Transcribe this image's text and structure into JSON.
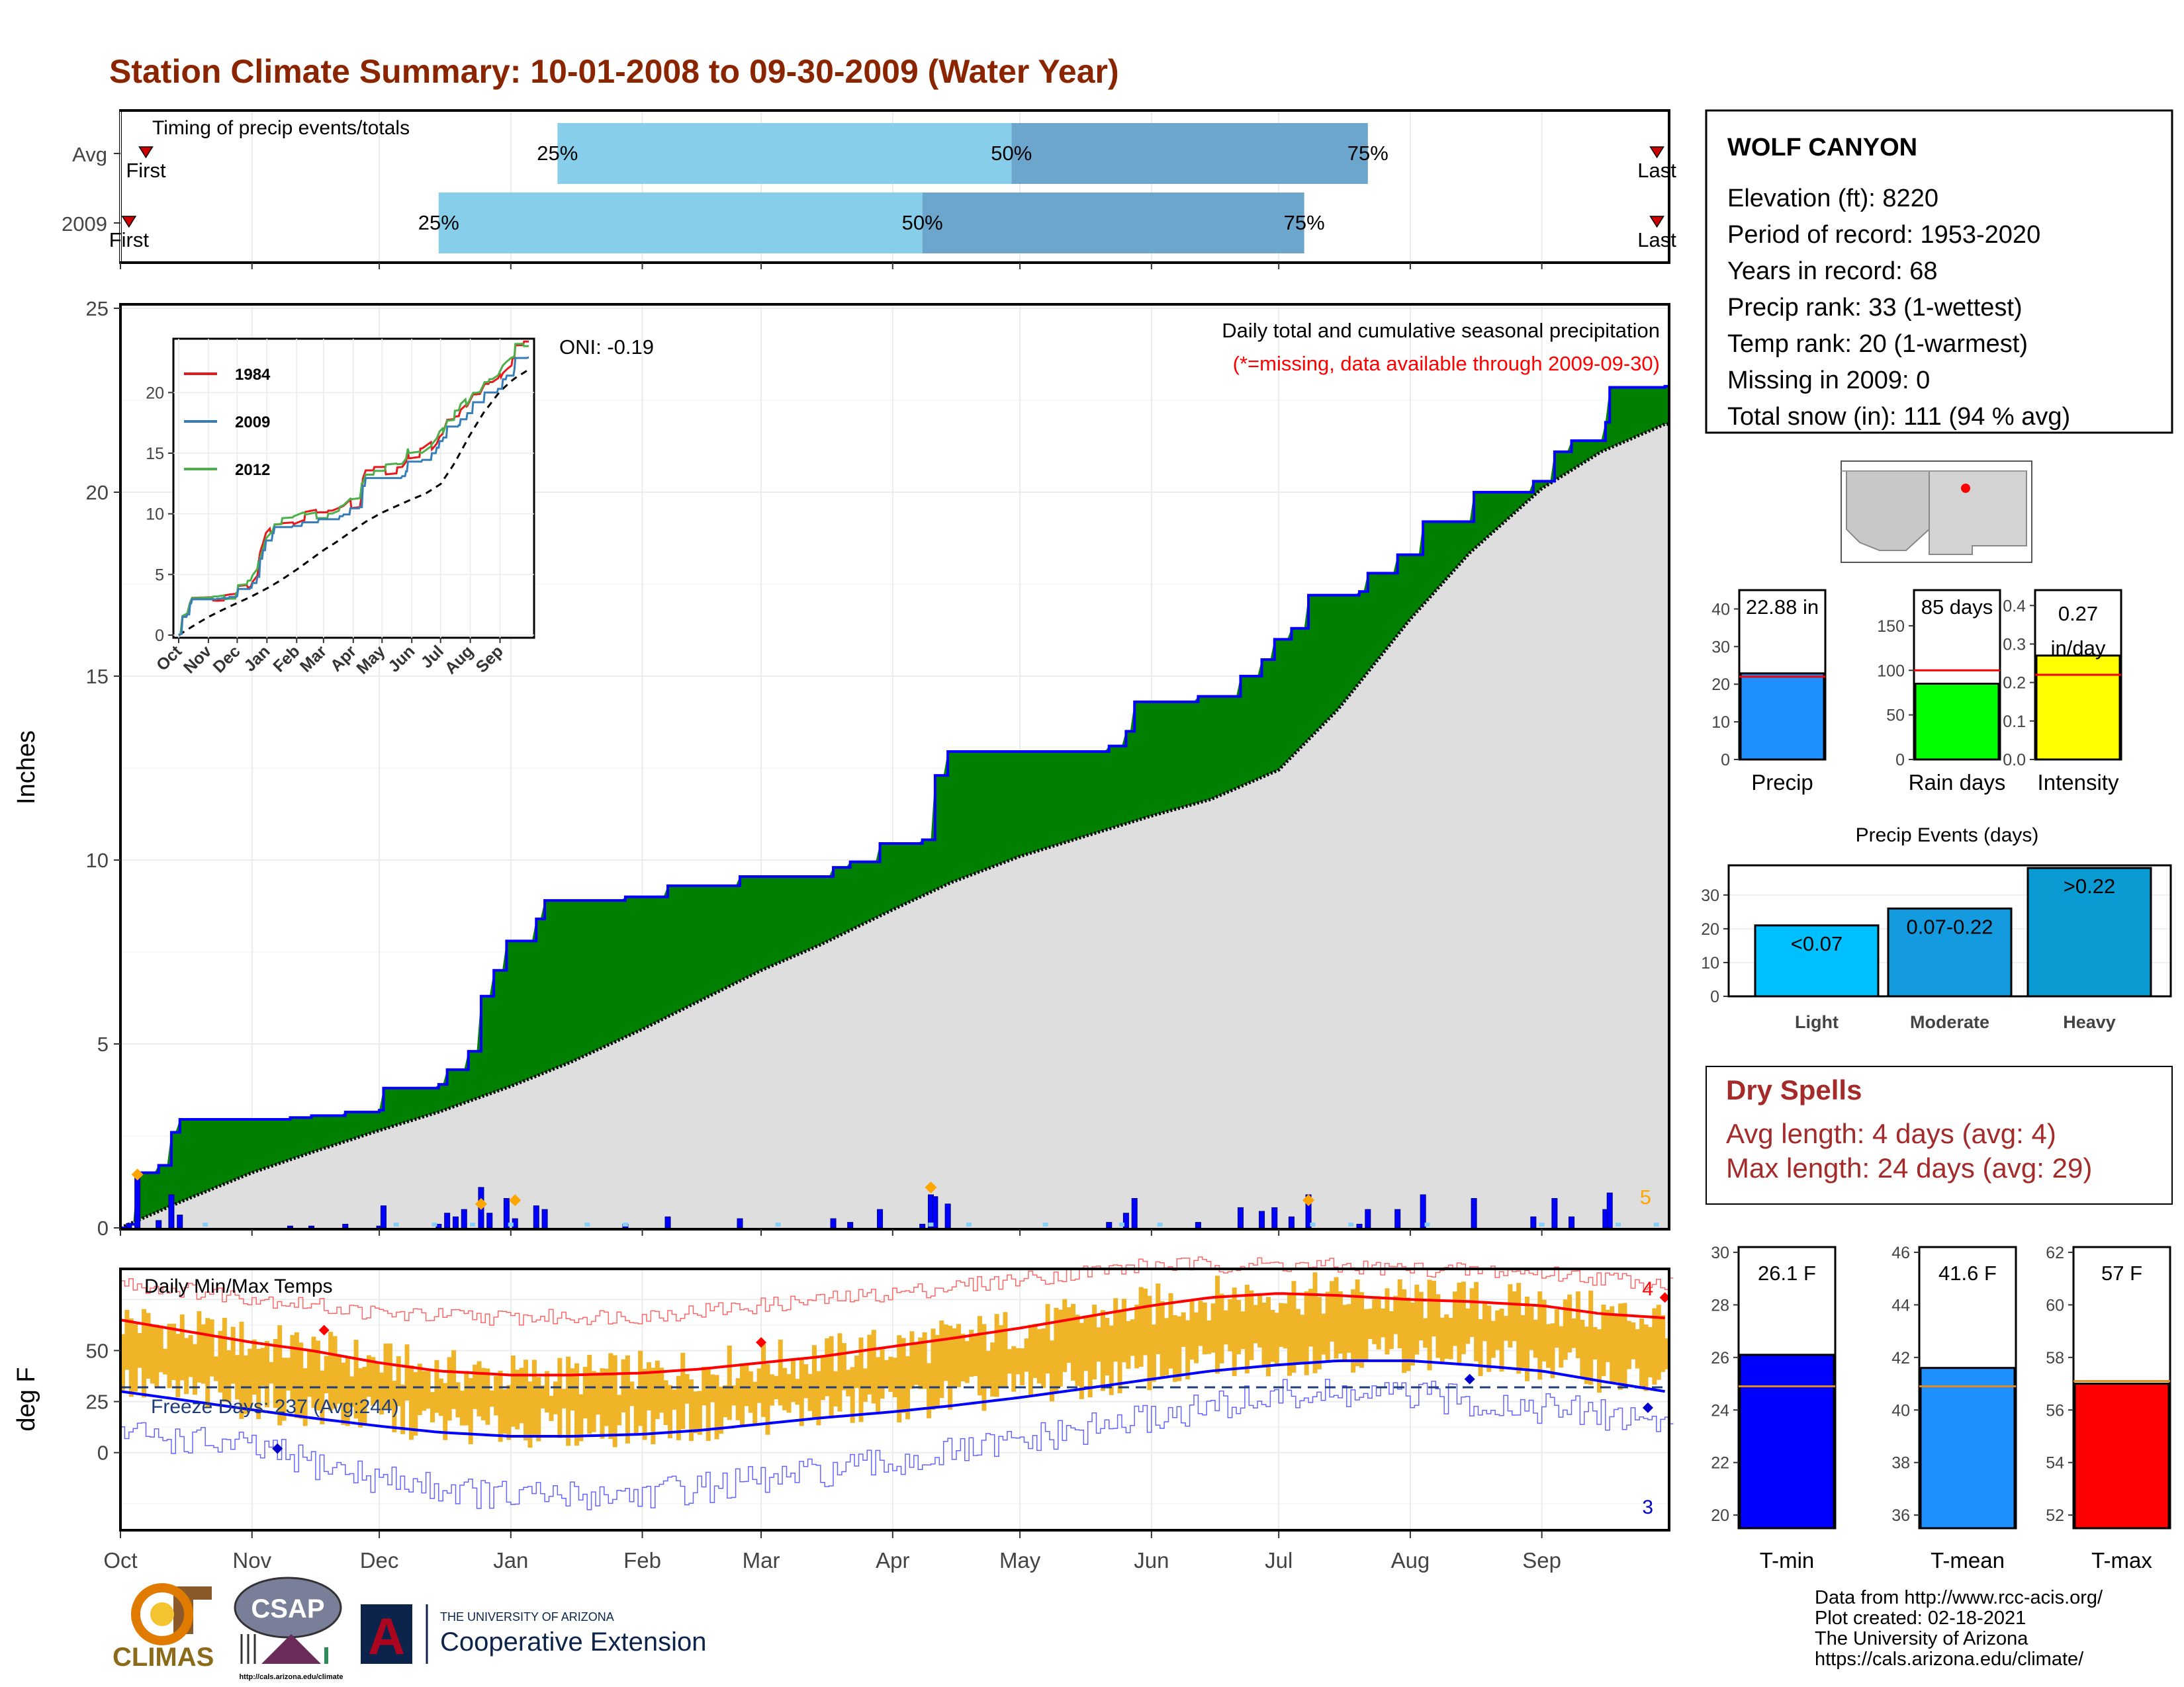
{
  "title": "Station Climate Summary: 10-01-2008 to 09-30-2009 (Water Year)",
  "colors": {
    "title": "#8B2500",
    "precip_area": "#008000",
    "normal_area": "#DEDEDE",
    "cumulative_line": "#0000FF",
    "bar_light": "#87CEEB",
    "bar_dark": "#6CA6CD",
    "temp_bar": "#F0B429",
    "tmax_line": "#FF0000",
    "tmin_line": "#0000FF",
    "dry_spells": "#A52A2A",
    "tmin_box": "#0000FF",
    "tmean_box": "#1E90FF",
    "tmax_box": "#FF0000",
    "precip_box": "#1E90FF",
    "raindays_box": "#00FF00",
    "intensity_box": "#FFFF00",
    "events_box": "#00BFFF"
  },
  "timing": {
    "label": "Timing of precip events/totals",
    "rows": [
      {
        "name": "Avg",
        "first_label": "First",
        "last_label": "Last",
        "p25_label": "25%",
        "p50_label": "50%",
        "p75_label": "75%",
        "first": "2008-10-07",
        "last": "2009-09-30",
        "p25": "2009-01-12",
        "p50": "2009-04-29",
        "p75": "2009-07-22"
      },
      {
        "name": "2009",
        "first_label": "First",
        "last_label": "Last",
        "p25_label": "25%",
        "p50_label": "50%",
        "p75_label": "75%",
        "first": "2008-10-03",
        "last": "2009-09-30",
        "p25": "2008-12-15",
        "p50": "2009-04-08",
        "p75": "2009-07-07"
      }
    ]
  },
  "chart_data": [
    {
      "type": "area",
      "name": "precip",
      "annotations": {
        "oni": "ONI: -0.19",
        "subtitle": "Daily total and cumulative seasonal precipitation",
        "missing_note": "(*=missing, data available through 2009-09-30)",
        "right_marker": "5"
      },
      "ylabel": "Inches",
      "ylim": [
        0,
        25
      ],
      "yticks": [
        "0",
        "5",
        "10",
        "15",
        "20",
        "25"
      ],
      "x_ticks": [
        "Oct",
        "Nov",
        "Dec",
        "Jan",
        "Feb",
        "Mar",
        "Apr",
        "May",
        "Jun",
        "Jul",
        "Aug",
        "Sep"
      ],
      "cumulative_2009": [
        [
          "2008-10-01",
          0.0
        ],
        [
          "2008-10-03",
          0.1
        ],
        [
          "2008-10-05",
          1.5
        ],
        [
          "2008-10-10",
          1.7
        ],
        [
          "2008-10-13",
          2.6
        ],
        [
          "2008-10-15",
          2.95
        ],
        [
          "2008-11-10",
          3.0
        ],
        [
          "2008-11-15",
          3.05
        ],
        [
          "2008-11-23",
          3.15
        ],
        [
          "2008-12-01",
          3.2
        ],
        [
          "2008-12-02",
          3.8
        ],
        [
          "2008-12-15",
          3.9
        ],
        [
          "2008-12-17",
          4.3
        ],
        [
          "2008-12-22",
          4.8
        ],
        [
          "2008-12-25",
          6.3
        ],
        [
          "2008-12-28",
          7.0
        ],
        [
          "2008-12-31",
          7.8
        ],
        [
          "2009-01-07",
          8.4
        ],
        [
          "2009-01-09",
          8.9
        ],
        [
          "2009-01-28",
          9.0
        ],
        [
          "2009-02-07",
          9.3
        ],
        [
          "2009-02-24",
          9.55
        ],
        [
          "2009-03-10",
          9.55
        ],
        [
          "2009-03-18",
          9.8
        ],
        [
          "2009-03-22",
          9.95
        ],
        [
          "2009-03-29",
          10.45
        ],
        [
          "2009-04-08",
          10.55
        ],
        [
          "2009-04-11",
          12.3
        ],
        [
          "2009-04-14",
          12.95
        ],
        [
          "2009-05-01",
          12.95
        ],
        [
          "2009-05-22",
          13.1
        ],
        [
          "2009-05-26",
          13.5
        ],
        [
          "2009-05-28",
          14.3
        ],
        [
          "2009-06-12",
          14.45
        ],
        [
          "2009-06-22",
          15.0
        ],
        [
          "2009-06-27",
          15.45
        ],
        [
          "2009-06-30",
          16.0
        ],
        [
          "2009-07-04",
          16.3
        ],
        [
          "2009-07-08",
          17.2
        ],
        [
          "2009-07-20",
          17.3
        ],
        [
          "2009-07-22",
          17.8
        ],
        [
          "2009-07-29",
          18.3
        ],
        [
          "2009-08-04",
          19.2
        ],
        [
          "2009-08-11",
          19.2
        ],
        [
          "2009-08-16",
          20.0
        ],
        [
          "2009-08-24",
          20.0
        ],
        [
          "2009-08-30",
          20.3
        ],
        [
          "2009-09-04",
          21.1
        ],
        [
          "2009-09-08",
          21.4
        ],
        [
          "2009-09-16",
          21.9
        ],
        [
          "2009-09-17",
          22.85
        ],
        [
          "2009-09-30",
          22.88
        ]
      ],
      "normal_cumulative": [
        [
          "2008-10-01",
          0.0
        ],
        [
          "2008-10-15",
          0.7
        ],
        [
          "2008-11-01",
          1.5
        ],
        [
          "2008-11-15",
          2.05
        ],
        [
          "2008-12-01",
          2.65
        ],
        [
          "2008-12-15",
          3.15
        ],
        [
          "2009-01-01",
          3.85
        ],
        [
          "2009-01-15",
          4.5
        ],
        [
          "2009-02-01",
          5.4
        ],
        [
          "2009-02-15",
          6.2
        ],
        [
          "2009-03-01",
          7.0
        ],
        [
          "2009-03-15",
          7.7
        ],
        [
          "2009-04-01",
          8.65
        ],
        [
          "2009-04-15",
          9.4
        ],
        [
          "2009-05-01",
          10.1
        ],
        [
          "2009-05-15",
          10.6
        ],
        [
          "2009-06-01",
          11.2
        ],
        [
          "2009-06-15",
          11.65
        ],
        [
          "2009-07-01",
          12.45
        ],
        [
          "2009-07-15",
          14.1
        ],
        [
          "2009-08-01",
          16.55
        ],
        [
          "2009-08-15",
          18.35
        ],
        [
          "2009-09-01",
          20.1
        ],
        [
          "2009-09-15",
          21.1
        ],
        [
          "2009-09-30",
          21.85
        ]
      ],
      "daily_precip": [
        [
          "2008-10-03",
          0.12
        ],
        [
          "2008-10-05",
          1.4
        ],
        [
          "2008-10-10",
          0.2
        ],
        [
          "2008-10-13",
          0.9
        ],
        [
          "2008-10-15",
          0.35
        ],
        [
          "2008-11-10",
          0.05
        ],
        [
          "2008-11-15",
          0.05
        ],
        [
          "2008-11-23",
          0.1
        ],
        [
          "2008-12-01",
          0.05
        ],
        [
          "2008-12-02",
          0.6
        ],
        [
          "2008-12-15",
          0.1
        ],
        [
          "2008-12-17",
          0.4
        ],
        [
          "2008-12-19",
          0.3
        ],
        [
          "2008-12-21",
          0.5
        ],
        [
          "2008-12-25",
          1.1
        ],
        [
          "2008-12-27",
          0.4
        ],
        [
          "2008-12-31",
          0.8
        ],
        [
          "2009-01-02",
          0.25
        ],
        [
          "2009-01-07",
          0.6
        ],
        [
          "2009-01-09",
          0.5
        ],
        [
          "2009-01-28",
          0.1
        ],
        [
          "2009-02-07",
          0.3
        ],
        [
          "2009-02-24",
          0.25
        ],
        [
          "2009-03-18",
          0.25
        ],
        [
          "2009-03-22",
          0.15
        ],
        [
          "2009-03-29",
          0.5
        ],
        [
          "2009-04-08",
          0.1
        ],
        [
          "2009-04-10",
          0.9
        ],
        [
          "2009-04-11",
          0.85
        ],
        [
          "2009-04-14",
          0.65
        ],
        [
          "2009-05-22",
          0.15
        ],
        [
          "2009-05-26",
          0.4
        ],
        [
          "2009-05-28",
          0.8
        ],
        [
          "2009-06-12",
          0.15
        ],
        [
          "2009-06-22",
          0.55
        ],
        [
          "2009-06-27",
          0.45
        ],
        [
          "2009-06-30",
          0.55
        ],
        [
          "2009-07-04",
          0.3
        ],
        [
          "2009-07-08",
          0.9
        ],
        [
          "2009-07-20",
          0.1
        ],
        [
          "2009-07-22",
          0.5
        ],
        [
          "2009-07-29",
          0.5
        ],
        [
          "2009-08-04",
          0.9
        ],
        [
          "2009-08-16",
          0.8
        ],
        [
          "2009-08-30",
          0.3
        ],
        [
          "2009-09-04",
          0.8
        ],
        [
          "2009-09-08",
          0.3
        ],
        [
          "2009-09-16",
          0.5
        ],
        [
          "2009-09-17",
          0.95
        ]
      ],
      "event_markers": [
        [
          "2008-10-05",
          1.45
        ],
        [
          "2008-12-25",
          0.65
        ],
        [
          "2009-01-02",
          0.75
        ],
        [
          "2009-04-10",
          1.1
        ],
        [
          "2009-07-08",
          0.75
        ]
      ]
    },
    {
      "type": "line",
      "name": "temps",
      "title": "Daily Min/Max Temps",
      "ylabel": "deg F",
      "ylim": [
        -38,
        90
      ],
      "yticks": [
        "0",
        "25",
        "50"
      ],
      "freeze_line_value": 32,
      "freeze_label": "Freeze Days: 237 (Avg:244)",
      "top_right_count": "4",
      "bottom_right_count": "3",
      "x_ticks": [
        "Oct",
        "Nov",
        "Dec",
        "Jan",
        "Feb",
        "Mar",
        "Apr",
        "May",
        "Jun",
        "Jul",
        "Aug",
        "Sep"
      ],
      "tmax_normal": [
        [
          "2008-10-01",
          65
        ],
        [
          "2008-10-15",
          60
        ],
        [
          "2008-11-01",
          54
        ],
        [
          "2008-11-15",
          50
        ],
        [
          "2008-12-01",
          44
        ],
        [
          "2008-12-15",
          40
        ],
        [
          "2009-01-01",
          38
        ],
        [
          "2009-01-15",
          38
        ],
        [
          "2009-02-01",
          39
        ],
        [
          "2009-02-15",
          41
        ],
        [
          "2009-03-01",
          44
        ],
        [
          "2009-03-15",
          47
        ],
        [
          "2009-04-01",
          52
        ],
        [
          "2009-04-15",
          56
        ],
        [
          "2009-05-01",
          61
        ],
        [
          "2009-05-15",
          66
        ],
        [
          "2009-06-01",
          72
        ],
        [
          "2009-06-15",
          76
        ],
        [
          "2009-07-01",
          78
        ],
        [
          "2009-07-15",
          77
        ],
        [
          "2009-08-01",
          75
        ],
        [
          "2009-08-15",
          74
        ],
        [
          "2009-09-01",
          72
        ],
        [
          "2009-09-15",
          68
        ],
        [
          "2009-09-30",
          66
        ]
      ],
      "tmin_normal": [
        [
          "2008-10-01",
          30
        ],
        [
          "2008-10-15",
          26
        ],
        [
          "2008-11-01",
          21
        ],
        [
          "2008-11-15",
          17
        ],
        [
          "2008-12-01",
          13
        ],
        [
          "2008-12-15",
          10
        ],
        [
          "2009-01-01",
          8
        ],
        [
          "2009-01-15",
          8
        ],
        [
          "2009-02-01",
          9
        ],
        [
          "2009-02-15",
          11
        ],
        [
          "2009-03-01",
          14
        ],
        [
          "2009-03-15",
          17
        ],
        [
          "2009-04-01",
          20
        ],
        [
          "2009-04-15",
          23
        ],
        [
          "2009-05-01",
          27
        ],
        [
          "2009-05-15",
          31
        ],
        [
          "2009-06-01",
          36
        ],
        [
          "2009-06-15",
          40
        ],
        [
          "2009-07-01",
          43
        ],
        [
          "2009-07-15",
          45
        ],
        [
          "2009-08-01",
          45
        ],
        [
          "2009-08-15",
          43
        ],
        [
          "2009-09-01",
          40
        ],
        [
          "2009-09-15",
          35
        ],
        [
          "2009-09-30",
          30
        ]
      ],
      "record_max": [
        [
          "2008-10-01",
          83
        ],
        [
          "2008-11-01",
          76
        ],
        [
          "2008-12-01",
          68
        ],
        [
          "2009-01-01",
          66
        ],
        [
          "2009-02-01",
          67
        ],
        [
          "2009-03-01",
          72
        ],
        [
          "2009-04-01",
          78
        ],
        [
          "2009-05-01",
          85
        ],
        [
          "2009-06-01",
          92
        ],
        [
          "2009-07-01",
          92
        ],
        [
          "2009-08-01",
          90
        ],
        [
          "2009-09-01",
          88
        ],
        [
          "2009-09-30",
          83
        ]
      ],
      "record_min": [
        [
          "2008-10-01",
          10
        ],
        [
          "2008-11-01",
          2
        ],
        [
          "2008-12-01",
          -13
        ],
        [
          "2009-01-01",
          -22
        ],
        [
          "2009-02-01",
          -20
        ],
        [
          "2009-03-01",
          -14
        ],
        [
          "2009-04-01",
          -5
        ],
        [
          "2009-05-01",
          5
        ],
        [
          "2009-06-01",
          17
        ],
        [
          "2009-07-01",
          28
        ],
        [
          "2009-08-01",
          28
        ],
        [
          "2009-09-01",
          22
        ],
        [
          "2009-09-30",
          15
        ]
      ]
    }
  ],
  "station": {
    "name": "WOLF CANYON",
    "lines": [
      "Elevation (ft): 8220",
      "Period of record: 1953-2020",
      "Years in record: 68",
      "Precip rank: 33 (1-wettest)",
      "Temp rank: 20 (1-warmest)",
      "Missing in 2009: 0",
      "Total snow (in): 111 (94 % avg)"
    ]
  },
  "precip_stats": [
    {
      "label": "Precip",
      "value_text": "22.88 in",
      "value": 22.88,
      "normal": 22,
      "ymax": 45,
      "ticks": [
        "0",
        "10",
        "20",
        "30",
        "40"
      ],
      "tick_values": [
        0,
        10,
        20,
        30,
        40
      ],
      "color_key": "precip_box"
    },
    {
      "label": "Rain days",
      "value_text": "85 days",
      "value": 85,
      "normal": 100,
      "ymax": 190,
      "ticks": [
        "0",
        "50",
        "100",
        "150"
      ],
      "tick_values": [
        0,
        50,
        100,
        150
      ],
      "color_key": "raindays_box"
    },
    {
      "label": "Intensity",
      "value_text": "0.27 in/day",
      "value_line1": "0.27",
      "value_line2": "in/day",
      "value": 0.27,
      "normal": 0.22,
      "ymax": 0.44,
      "ticks": [
        "0.0",
        "0.1",
        "0.2",
        "0.3",
        "0.4"
      ],
      "tick_values": [
        0,
        0.1,
        0.2,
        0.3,
        0.4
      ],
      "color_key": "intensity_box"
    }
  ],
  "events": {
    "title": "Precip Events (days)",
    "ymax": 38,
    "ticks": [
      "0",
      "10",
      "20",
      "30"
    ],
    "tick_values": [
      0,
      10,
      20,
      30
    ],
    "bars": [
      {
        "category": "Light",
        "label": "<0.07",
        "value": 21
      },
      {
        "category": "Moderate",
        "label": "0.07-0.22",
        "value": 26
      },
      {
        "category": "Heavy",
        "label": ">0.22",
        "value": 38
      }
    ]
  },
  "dry_spells": {
    "title": "Dry Spells",
    "avg_line": "Avg length: 4 days (avg: 4)",
    "max_line": "Max length: 24 days (avg: 29)"
  },
  "temp_stats": [
    {
      "label": "T-min",
      "value_text": "26.1 F",
      "value": 26.1,
      "normal": 24.9,
      "ymin": 19.5,
      "ymax": 30.2,
      "ticks": [
        "20",
        "22",
        "24",
        "26",
        "28",
        "30"
      ],
      "tick_values": [
        20,
        22,
        24,
        26,
        28,
        30
      ],
      "color_key": "tmin_box"
    },
    {
      "label": "T-mean",
      "value_text": "41.6 F",
      "value": 41.6,
      "normal": 40.9,
      "ymin": 35.5,
      "ymax": 46.2,
      "ticks": [
        "36",
        "38",
        "40",
        "42",
        "44",
        "46"
      ],
      "tick_values": [
        36,
        38,
        40,
        42,
        44,
        46
      ],
      "color_key": "tmean_box"
    },
    {
      "label": "T-max",
      "value_text": "57 F",
      "value": 57,
      "normal": 57.1,
      "ymin": 51.5,
      "ymax": 62.2,
      "ticks": [
        "52",
        "54",
        "56",
        "58",
        "60",
        "62"
      ],
      "tick_values": [
        52,
        54,
        56,
        58,
        60,
        62
      ],
      "color_key": "tmax_box"
    }
  ],
  "footer": {
    "lines": [
      "Data from http://www.rcc-acis.org/",
      "Plot created: 02-18-2021",
      "The University of Arizona",
      "https://cals.arizona.edu/climate/"
    ],
    "climas": "CLIMAS",
    "csap": "CSAP",
    "csap_url": "http://cals.arizona.edu/climate",
    "ua_small": "THE UNIVERSITY OF ARIZONA",
    "ua_big": "Cooperative Extension",
    "ua_letter": "A"
  }
}
